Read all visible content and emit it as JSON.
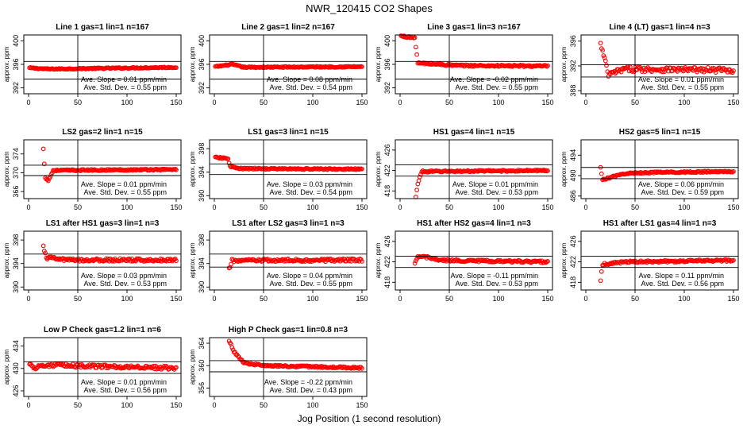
{
  "figure": {
    "title": "NWR_120415  CO2 Shapes",
    "xlabel": "Jog Position (1 second resolution)"
  },
  "colors": {
    "points": "#ff0000",
    "axes": "#000000"
  },
  "chart_data": [
    {
      "type": "scatter",
      "title": "Line 1 gas=1 lin=1 n=167",
      "ylabel": "approx. ppm",
      "xlim": [
        0,
        150
      ],
      "ylim": [
        391,
        401
      ],
      "yticks": [
        392,
        396,
        400
      ],
      "xticks": [
        0,
        50,
        100,
        150
      ],
      "hlines": [
        396.5,
        393.5
      ],
      "vline": 50,
      "slope_text": "Ave. Slope = 0.01  ppm/min",
      "sd_text": "Ave. Std. Dev. = 0.55  ppm",
      "profile": {
        "start": 1,
        "end": 150,
        "segments": [
          [
            1,
            395.4
          ],
          [
            20,
            395.2
          ],
          [
            150,
            395.5
          ]
        ],
        "noise": 0.1
      }
    },
    {
      "type": "scatter",
      "title": "Line 2 gas=1 lin=2 n=167",
      "ylabel": "approx. ppm",
      "xlim": [
        0,
        150
      ],
      "ylim": [
        391,
        401
      ],
      "yticks": [
        392,
        396,
        400
      ],
      "xticks": [
        0,
        50,
        100,
        150
      ],
      "hlines": [
        396.5,
        393.5
      ],
      "vline": 50,
      "slope_text": "Ave. Slope = 0.08  ppm/min",
      "sd_text": "Ave. Std. Dev. = 0.54  ppm",
      "profile": {
        "start": 1,
        "end": 150,
        "segments": [
          [
            1,
            395.6
          ],
          [
            18,
            396.0
          ],
          [
            30,
            395.5
          ],
          [
            150,
            395.6
          ]
        ],
        "noise": 0.1
      }
    },
    {
      "type": "scatter",
      "title": "Line 3 gas=1 lin=3 n=167",
      "ylabel": "approx. ppm",
      "xlim": [
        0,
        150
      ],
      "ylim": [
        391,
        401
      ],
      "yticks": [
        392,
        396,
        400
      ],
      "xticks": [
        0,
        50,
        100,
        150
      ],
      "hlines": [
        396.5,
        393.5
      ],
      "vline": 50,
      "slope_text": "Ave. Slope = -0.02  ppm/min",
      "sd_text": "Ave. Std. Dev. = 0.55  ppm",
      "profile": {
        "start": 1,
        "end": 150,
        "segments": [
          [
            1,
            400.8
          ],
          [
            15,
            400.5
          ],
          [
            18,
            396.2
          ],
          [
            60,
            395.8
          ],
          [
            150,
            395.7
          ]
        ],
        "noise": 0.15
      }
    },
    {
      "type": "scatter",
      "title": "Line 4 (LT) gas=1 lin=4 n=3",
      "ylabel": "approx. ppm",
      "xlim": [
        0,
        150
      ],
      "ylim": [
        387.5,
        397
      ],
      "yticks": [
        388,
        392,
        396
      ],
      "xticks": [
        0,
        50,
        100,
        150
      ],
      "hlines": [
        392.2,
        390.2
      ],
      "vline": 50,
      "slope_text": "Ave. Slope = 0.01  ppm/min",
      "sd_text": "Ave. Std. Dev. = 0.55  ppm",
      "profile": {
        "start": 15,
        "end": 150,
        "segments": [
          [
            15,
            395.5
          ],
          [
            20,
            392.5
          ],
          [
            23,
            390.5
          ],
          [
            30,
            391.0
          ],
          [
            40,
            391.5
          ],
          [
            150,
            391.3
          ]
        ],
        "noise": 0.4
      }
    },
    {
      "type": "scatter",
      "title": "LS2 gas=2 lin=1 n=15",
      "ylabel": "approx. ppm",
      "xlim": [
        0,
        150
      ],
      "ylim": [
        364.5,
        377
      ],
      "yticks": [
        366,
        370,
        374
      ],
      "xticks": [
        0,
        50,
        100,
        150
      ],
      "hlines": [
        371.6,
        369.4
      ],
      "vline": 50,
      "slope_text": "Ave. Slope = 0.01  ppm/min",
      "sd_text": "Ave. Std. Dev. = 0.55  ppm",
      "profile": {
        "start": 15,
        "end": 150,
        "segments": [
          [
            15,
            375.0
          ],
          [
            17,
            369.0
          ],
          [
            20,
            368.3
          ],
          [
            25,
            370.5
          ],
          [
            150,
            370.7
          ]
        ],
        "noise": 0.15
      }
    },
    {
      "type": "scatter",
      "title": "LS1 gas=3 lin=1 n=15",
      "ylabel": "approx. ppm",
      "xlim": [
        0,
        150
      ],
      "ylim": [
        389.5,
        399.5
      ],
      "yticks": [
        390,
        394,
        398
      ],
      "xticks": [
        0,
        50,
        100,
        150
      ],
      "hlines": [
        395.4,
        393.6
      ],
      "vline": 50,
      "slope_text": "Ave. Slope = 0.03  ppm/min",
      "sd_text": "Ave. Std. Dev. = 0.54  ppm",
      "profile": {
        "start": 1,
        "end": 150,
        "segments": [
          [
            1,
            396.5
          ],
          [
            14,
            396.3
          ],
          [
            16,
            395.0
          ],
          [
            25,
            394.6
          ],
          [
            150,
            394.5
          ]
        ],
        "noise": 0.12
      }
    },
    {
      "type": "scatter",
      "title": "HS1 gas=4 lin=1 n=15",
      "ylabel": "approx. ppm",
      "xlim": [
        0,
        150
      ],
      "ylim": [
        416.5,
        428
      ],
      "yticks": [
        418,
        422,
        426
      ],
      "xticks": [
        0,
        50,
        100,
        150
      ],
      "hlines": [
        423.1,
        420.9
      ],
      "vline": 50,
      "slope_text": "Ave. Slope = 0.01  ppm/min",
      "sd_text": "Ave. Std. Dev. = 0.53  ppm",
      "profile": {
        "start": 16,
        "end": 150,
        "segments": [
          [
            16,
            416.7
          ],
          [
            18,
            419.5
          ],
          [
            22,
            421.8
          ],
          [
            150,
            422.0
          ]
        ],
        "noise": 0.15
      }
    },
    {
      "type": "scatter",
      "title": "HS2 gas=5 lin=1 n=15",
      "ylabel": "approx. ppm",
      "xlim": [
        0,
        150
      ],
      "ylim": [
        485.5,
        497
      ],
      "yticks": [
        486,
        490,
        494
      ],
      "xticks": [
        0,
        50,
        100,
        150
      ],
      "hlines": [
        491.6,
        489.4
      ],
      "vline": 50,
      "slope_text": "Ave. Slope = 0.06  ppm/min",
      "sd_text": "Ave. Std. Dev. = 0.59  ppm",
      "profile": {
        "start": 15,
        "end": 150,
        "segments": [
          [
            15,
            491.5
          ],
          [
            17,
            489.2
          ],
          [
            22,
            489.5
          ],
          [
            40,
            490.4
          ],
          [
            60,
            490.6
          ],
          [
            150,
            490.8
          ]
        ],
        "noise": 0.15
      }
    },
    {
      "type": "scatter",
      "title": "LS1 after HS1 gas=3 lin=1 n=3",
      "ylabel": "approx. ppm",
      "xlim": [
        0,
        150
      ],
      "ylim": [
        389.5,
        399.5
      ],
      "yticks": [
        390,
        394,
        398
      ],
      "xticks": [
        0,
        50,
        100,
        150
      ],
      "hlines": [
        395.6,
        393.4
      ],
      "vline": 50,
      "slope_text": "Ave. Slope = 0.03  ppm/min",
      "sd_text": "Ave. Std. Dev. = 0.53  ppm",
      "profile": {
        "start": 15,
        "end": 150,
        "segments": [
          [
            15,
            396.8
          ],
          [
            18,
            395.0
          ],
          [
            40,
            394.6
          ],
          [
            150,
            394.6
          ]
        ],
        "noise": 0.25
      }
    },
    {
      "type": "scatter",
      "title": "LS1 after LS2 gas=3 lin=1 n=3",
      "ylabel": "approx. ppm",
      "xlim": [
        0,
        150
      ],
      "ylim": [
        389.5,
        399.5
      ],
      "yticks": [
        390,
        394,
        398
      ],
      "xticks": [
        0,
        50,
        100,
        150
      ],
      "hlines": [
        395.6,
        393.4
      ],
      "vline": 50,
      "slope_text": "Ave. Slope = 0.04  ppm/min",
      "sd_text": "Ave. Std. Dev. = 0.55  ppm",
      "profile": {
        "start": 15,
        "end": 150,
        "segments": [
          [
            15,
            393.0
          ],
          [
            18,
            394.5
          ],
          [
            150,
            394.6
          ]
        ],
        "noise": 0.25
      }
    },
    {
      "type": "scatter",
      "title": "HS1 after HS2 gas=4 lin=1 n=3",
      "ylabel": "approx. ppm",
      "xlim": [
        0,
        150
      ],
      "ylim": [
        416.5,
        428
      ],
      "yticks": [
        418,
        422,
        426
      ],
      "xticks": [
        0,
        50,
        100,
        150
      ],
      "hlines": [
        423.1,
        420.9
      ],
      "vline": 50,
      "slope_text": "Ave. Slope = -0.11  ppm/min",
      "sd_text": "Ave. Std. Dev. = 0.53  ppm",
      "profile": {
        "start": 15,
        "end": 150,
        "segments": [
          [
            15,
            421.5
          ],
          [
            18,
            423.0
          ],
          [
            25,
            423.0
          ],
          [
            40,
            422.3
          ],
          [
            150,
            422.0
          ]
        ],
        "noise": 0.2
      }
    },
    {
      "type": "scatter",
      "title": "HS1 after LS1 gas=4 lin=1 n=3",
      "ylabel": "approx. ppm",
      "xlim": [
        0,
        150
      ],
      "ylim": [
        416.5,
        428
      ],
      "yticks": [
        418,
        422,
        426
      ],
      "xticks": [
        0,
        50,
        100,
        150
      ],
      "hlines": [
        423.1,
        420.9
      ],
      "vline": 50,
      "slope_text": "Ave. Slope = 0.11  ppm/min",
      "sd_text": "Ave. Std. Dev. = 0.56  ppm",
      "profile": {
        "start": 15,
        "end": 150,
        "segments": [
          [
            15,
            418.5
          ],
          [
            17,
            421.5
          ],
          [
            40,
            422.0
          ],
          [
            150,
            422.3
          ]
        ],
        "noise": 0.2
      }
    },
    {
      "type": "scatter",
      "title": "Low P Check gas=1.2 lin=1 n=6",
      "ylabel": "approx. ppm",
      "xlim": [
        0,
        150
      ],
      "ylim": [
        425,
        435.5
      ],
      "yticks": [
        426,
        430,
        434
      ],
      "xticks": [
        0,
        50,
        100,
        150
      ],
      "hlines": [
        431.2,
        429.1
      ],
      "vline": 50,
      "slope_text": "Ave. Slope = 0.01  ppm/min",
      "sd_text": "Ave. Std. Dev. = 0.56  ppm",
      "profile": {
        "start": 1,
        "end": 150,
        "segments": [
          [
            1,
            431.0
          ],
          [
            5,
            430.0
          ],
          [
            15,
            430.6
          ],
          [
            150,
            430.1
          ]
        ],
        "noise": 0.3
      }
    },
    {
      "type": "scatter",
      "title": "High P Check gas=1 lin=0.8 n=3",
      "ylabel": "approx. ppm",
      "xlim": [
        0,
        150
      ],
      "ylim": [
        354.5,
        365
      ],
      "yticks": [
        356,
        360,
        364
      ],
      "xticks": [
        0,
        50,
        100,
        150
      ],
      "hlines": [
        360.9,
        358.9
      ],
      "vline": 50,
      "slope_text": "Ave. Slope = -0.22  ppm/min",
      "sd_text": "Ave. Std. Dev. = 0.43  ppm",
      "profile": {
        "start": 15,
        "end": 150,
        "segments": [
          [
            15,
            364.5
          ],
          [
            20,
            362.5
          ],
          [
            30,
            360.5
          ],
          [
            50,
            360.0
          ],
          [
            150,
            359.6
          ]
        ],
        "noise": 0.15
      }
    }
  ]
}
